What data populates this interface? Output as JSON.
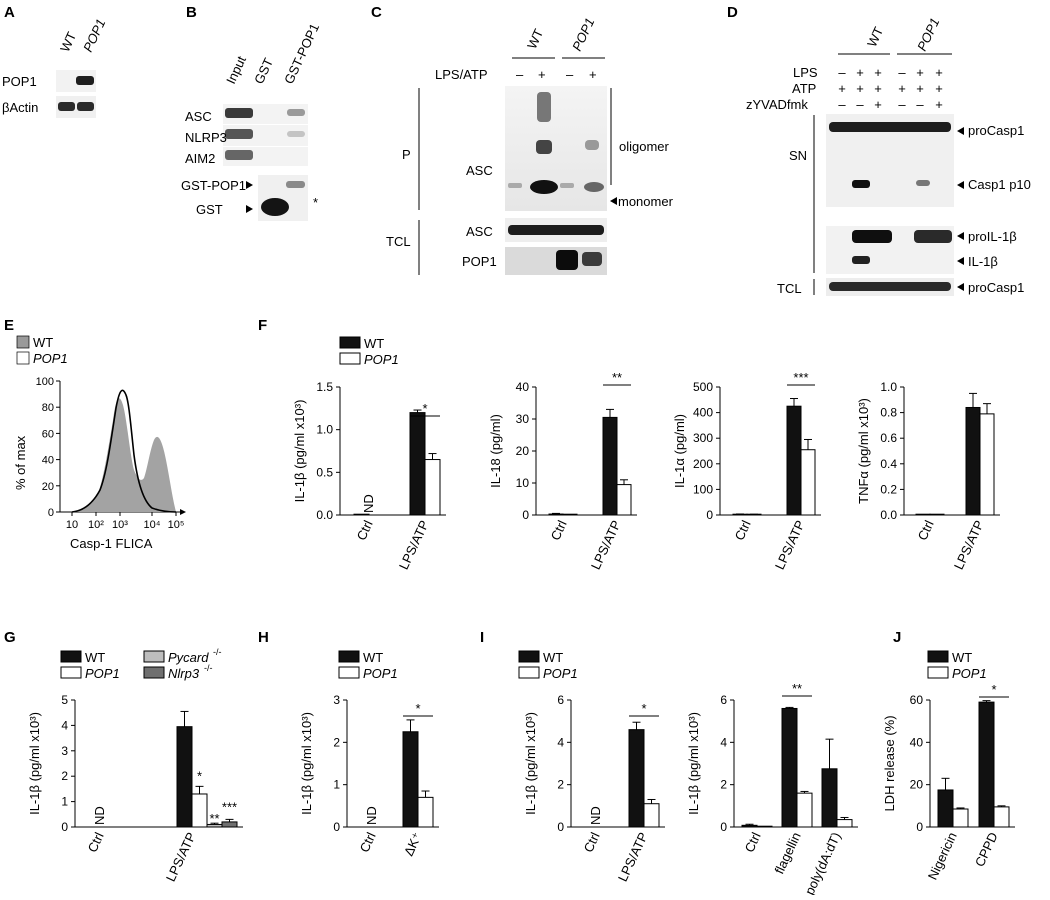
{
  "panel_letters": [
    "A",
    "B",
    "C",
    "D",
    "E",
    "F",
    "G",
    "H",
    "I",
    "J"
  ],
  "blots": {
    "A": {
      "lanes": [
        "WT",
        "POP1"
      ],
      "rows": [
        "POP1",
        "βActin"
      ]
    },
    "B": {
      "lanes": [
        "Input",
        "GST",
        "GST-POP1"
      ],
      "rows": [
        "ASC",
        "NLRP3",
        "AIM2",
        "GST-POP1",
        "GST"
      ],
      "asterisk": "*"
    },
    "C": {
      "groups": [
        "WT",
        "POP1"
      ],
      "treatment": "LPS/ATP",
      "signs": [
        "–",
        "+",
        "–",
        "+"
      ],
      "fraction_p": "P",
      "fraction_tcl": "TCL",
      "rows_p": [
        "ASC"
      ],
      "rows_tcl": [
        "ASC",
        "POP1"
      ],
      "annotations": [
        "oligomer",
        "monomer"
      ]
    },
    "D": {
      "groups": [
        "WT",
        "POP1"
      ],
      "conditions": [
        {
          "label": "LPS",
          "signs": [
            "–",
            "+",
            "+",
            "–",
            "+",
            "+"
          ]
        },
        {
          "label": "ATP",
          "signs": [
            "+",
            "+",
            "+",
            "+",
            "+",
            "+"
          ]
        },
        {
          "label": "zYVADfmk",
          "signs": [
            "–",
            "–",
            "+",
            "–",
            "–",
            "+"
          ]
        }
      ],
      "fraction_sn": "SN",
      "fraction_tcl": "TCL",
      "bands": [
        "proCasp1",
        "Casp1 p10",
        "proIL-1β",
        "IL-1β",
        "proCasp1"
      ]
    }
  },
  "flow": {
    "legend": [
      "WT",
      "POP1"
    ],
    "ylabel": "% of max",
    "xlabel": "Casp-1 FLICA",
    "yticks": [
      "0",
      "20",
      "40",
      "60",
      "80",
      "100"
    ],
    "xticks": [
      "10",
      "10²",
      "10³",
      "10⁴",
      "10⁵"
    ]
  },
  "legend_labels": {
    "wt": "WT",
    "pop1": "POP1",
    "pycard": "Pycard",
    "nlrp3": "Nlrp3",
    "ko_sup": "-/-"
  },
  "nd_label": "ND",
  "chart_data": [
    {
      "id": "F1",
      "type": "bar",
      "categories": [
        "Ctrl",
        "LPS/ATP"
      ],
      "series": [
        {
          "name": "WT",
          "values": [
            0,
            1.2
          ]
        },
        {
          "name": "POP1",
          "values": [
            null,
            0.65
          ]
        }
      ],
      "errors": [
        [
          0,
          0.03
        ],
        [
          null,
          0.07
        ]
      ],
      "ylabel": "IL-1β (pg/ml x10³)",
      "ylim": [
        0,
        1.5
      ],
      "yticks": [
        "0.0",
        "0.5",
        "1.0",
        "1.5"
      ],
      "nd": "ND",
      "sig": [
        "*"
      ],
      "legend": [
        "WT",
        "POP1"
      ]
    },
    {
      "id": "F2",
      "type": "bar",
      "categories": [
        "Ctrl",
        "LPS/ATP"
      ],
      "series": [
        {
          "name": "WT",
          "values": [
            0.3,
            30.5
          ]
        },
        {
          "name": "POP1",
          "values": [
            0,
            9.5
          ]
        }
      ],
      "errors": [
        [
          0.2,
          2.5
        ],
        [
          0,
          1.5
        ]
      ],
      "ylabel": "IL-18 (pg/ml)",
      "ylim": [
        0,
        40
      ],
      "yticks": [
        "0",
        "10",
        "20",
        "30",
        "40"
      ],
      "sig": [
        "**"
      ]
    },
    {
      "id": "F3",
      "type": "bar",
      "categories": [
        "Ctrl",
        "LPS/ATP"
      ],
      "series": [
        {
          "name": "WT",
          "values": [
            3,
            425
          ]
        },
        {
          "name": "POP1",
          "values": [
            2,
            255
          ]
        }
      ],
      "errors": [
        [
          1,
          30
        ],
        [
          1,
          40
        ]
      ],
      "ylabel": "IL-1α (pg/ml)",
      "ylim": [
        0,
        500
      ],
      "yticks": [
        "0",
        "100",
        "200",
        "300",
        "400",
        "500"
      ],
      "sig": [
        "***"
      ]
    },
    {
      "id": "F4",
      "type": "bar",
      "categories": [
        "Ctrl",
        "LPS/ATP"
      ],
      "series": [
        {
          "name": "WT",
          "values": [
            0,
            0.84
          ]
        },
        {
          "name": "POP1",
          "values": [
            0,
            0.79
          ]
        }
      ],
      "errors": [
        [
          0,
          0.11
        ],
        [
          0,
          0.08
        ]
      ],
      "ylabel": "TNFα (pg/ml x10³)",
      "ylim": [
        0,
        1.0
      ],
      "yticks": [
        "0.0",
        "0.2",
        "0.4",
        "0.6",
        "0.8",
        "1.0"
      ],
      "sig": []
    },
    {
      "id": "G",
      "type": "bar",
      "categories": [
        "Ctrl",
        "LPS/ATP"
      ],
      "series": [
        {
          "name": "WT",
          "values": [
            null,
            3.95
          ]
        },
        {
          "name": "POP1",
          "values": [
            null,
            1.3
          ]
        },
        {
          "name": "Pycard-/-",
          "values": [
            null,
            0.1
          ]
        },
        {
          "name": "Nlrp3-/-",
          "values": [
            null,
            0.2
          ]
        }
      ],
      "errors": [
        [
          null,
          0.6
        ],
        [
          null,
          0.3
        ],
        [
          null,
          0.05
        ],
        [
          null,
          0.1
        ]
      ],
      "ylabel": "IL-1β (pg/ml x10³)",
      "ylim": [
        0,
        5
      ],
      "yticks": [
        "0",
        "1",
        "2",
        "3",
        "4",
        "5"
      ],
      "nd": "ND",
      "sig": [
        "*",
        "**",
        "***"
      ],
      "legend": [
        "WT",
        "POP1",
        "Pycard-/-",
        "Nlrp3-/-"
      ]
    },
    {
      "id": "H",
      "type": "bar",
      "categories": [
        "Ctrl",
        "ΔK⁺"
      ],
      "series": [
        {
          "name": "WT",
          "values": [
            null,
            2.25
          ]
        },
        {
          "name": "POP1",
          "values": [
            null,
            0.7
          ]
        }
      ],
      "errors": [
        [
          null,
          0.28
        ],
        [
          null,
          0.15
        ]
      ],
      "ylabel": "IL-1β (pg/ml x10³)",
      "ylim": [
        0,
        3
      ],
      "yticks": [
        "0",
        "1",
        "2",
        "3"
      ],
      "nd": "ND",
      "sig": [
        "*"
      ],
      "legend": [
        "WT",
        "POP1"
      ]
    },
    {
      "id": "I1",
      "type": "bar",
      "categories": [
        "Ctrl",
        "LPS/ATP"
      ],
      "series": [
        {
          "name": "WT",
          "values": [
            null,
            4.6
          ]
        },
        {
          "name": "POP1",
          "values": [
            null,
            1.1
          ]
        }
      ],
      "errors": [
        [
          null,
          0.35
        ],
        [
          null,
          0.2
        ]
      ],
      "ylabel": "IL-1β (pg/ml x10³)",
      "ylim": [
        0,
        6
      ],
      "yticks": [
        "0",
        "2",
        "4",
        "6"
      ],
      "nd": "ND",
      "sig": [
        "*"
      ],
      "legend": [
        "WT",
        "POP1"
      ]
    },
    {
      "id": "I2",
      "type": "bar",
      "categories": [
        "Ctrl",
        "flagellin",
        "poly(dA:dT)"
      ],
      "series": [
        {
          "name": "WT",
          "values": [
            0.08,
            5.6,
            2.75
          ]
        },
        {
          "name": "POP1",
          "values": [
            0,
            1.6,
            0.35
          ]
        }
      ],
      "errors": [
        [
          0.05,
          0.05,
          1.4
        ],
        [
          0,
          0.08,
          0.1
        ]
      ],
      "ylabel": "IL-1β (pg/ml x10³)",
      "ylim": [
        0,
        6
      ],
      "yticks": [
        "0",
        "2",
        "4",
        "6"
      ],
      "sig": [
        "**"
      ]
    },
    {
      "id": "J",
      "type": "bar",
      "categories": [
        "Nigericin",
        "CPPD"
      ],
      "series": [
        {
          "name": "WT",
          "values": [
            17.5,
            59
          ]
        },
        {
          "name": "POP1",
          "values": [
            8.5,
            9.5
          ]
        }
      ],
      "errors": [
        [
          5.5,
          0.7
        ],
        [
          0.5,
          0.5
        ]
      ],
      "ylabel": "LDH release (%)",
      "ylim": [
        0,
        60
      ],
      "yticks": [
        "0",
        "20",
        "40",
        "60"
      ],
      "sig": [
        "*"
      ],
      "legend": [
        "WT",
        "POP1"
      ]
    }
  ]
}
